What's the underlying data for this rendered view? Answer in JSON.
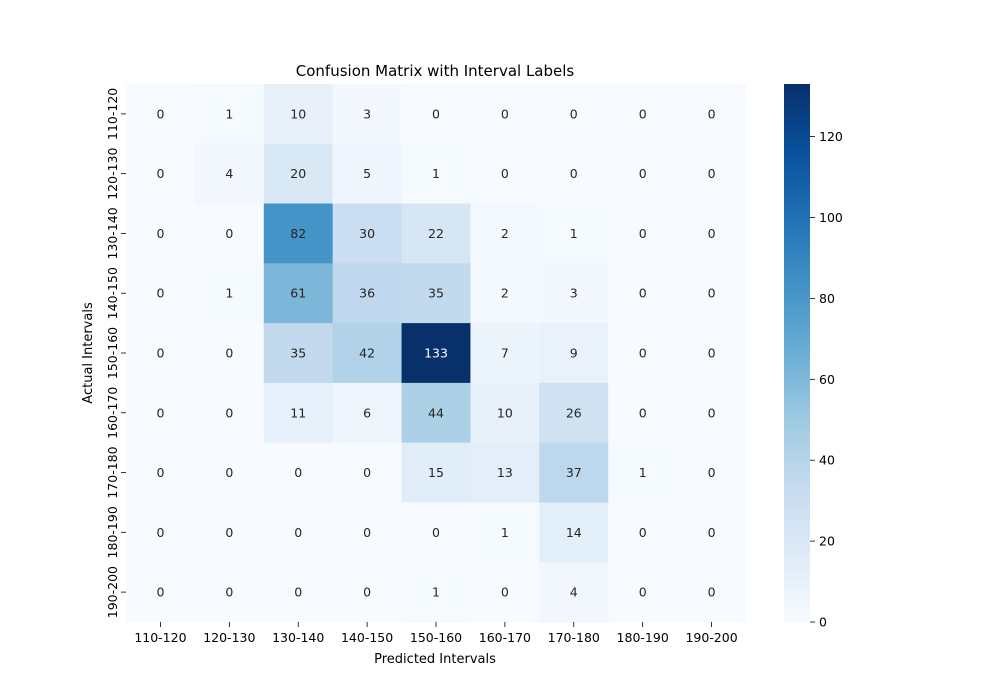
{
  "chart_data": {
    "type": "heatmap",
    "title": "Confusion Matrix with Interval Labels",
    "xlabel": "Predicted Intervals",
    "ylabel": "Actual Intervals",
    "x_categories": [
      "110-120",
      "120-130",
      "130-140",
      "140-150",
      "150-160",
      "160-170",
      "170-180",
      "180-190",
      "190-200"
    ],
    "y_categories": [
      "110-120",
      "120-130",
      "130-140",
      "140-150",
      "150-160",
      "160-170",
      "170-180",
      "180-190",
      "190-200"
    ],
    "matrix": [
      [
        0,
        1,
        10,
        3,
        0,
        0,
        0,
        0,
        0
      ],
      [
        0,
        4,
        20,
        5,
        1,
        0,
        0,
        0,
        0
      ],
      [
        0,
        0,
        82,
        30,
        22,
        2,
        1,
        0,
        0
      ],
      [
        0,
        1,
        61,
        36,
        35,
        2,
        3,
        0,
        0
      ],
      [
        0,
        0,
        35,
        42,
        133,
        7,
        9,
        0,
        0
      ],
      [
        0,
        0,
        11,
        6,
        44,
        10,
        26,
        0,
        0
      ],
      [
        0,
        0,
        0,
        0,
        15,
        13,
        37,
        1,
        0
      ],
      [
        0,
        0,
        0,
        0,
        0,
        1,
        14,
        0,
        0
      ],
      [
        0,
        0,
        0,
        0,
        1,
        0,
        4,
        0,
        0
      ]
    ],
    "colorbar": {
      "colormap": "Blues",
      "range": [
        0,
        133
      ],
      "ticks": [
        0,
        20,
        40,
        60,
        80,
        100,
        120
      ],
      "low_color": "#f7fbff",
      "high_color": "#08306b"
    }
  }
}
